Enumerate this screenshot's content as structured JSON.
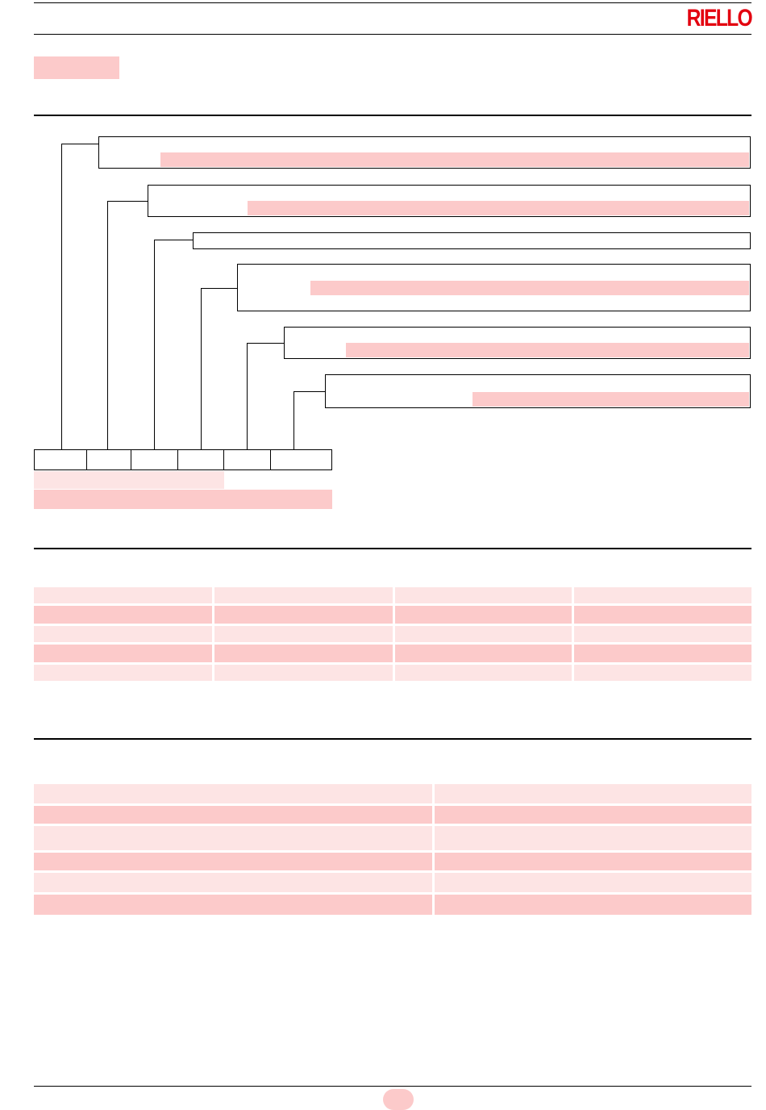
{
  "header": {
    "logo_text": "RIELLO",
    "brand_color": "#e3000f"
  },
  "highlight_colors": {
    "strong": "#fccaca",
    "light": "#fde4e4"
  }
}
